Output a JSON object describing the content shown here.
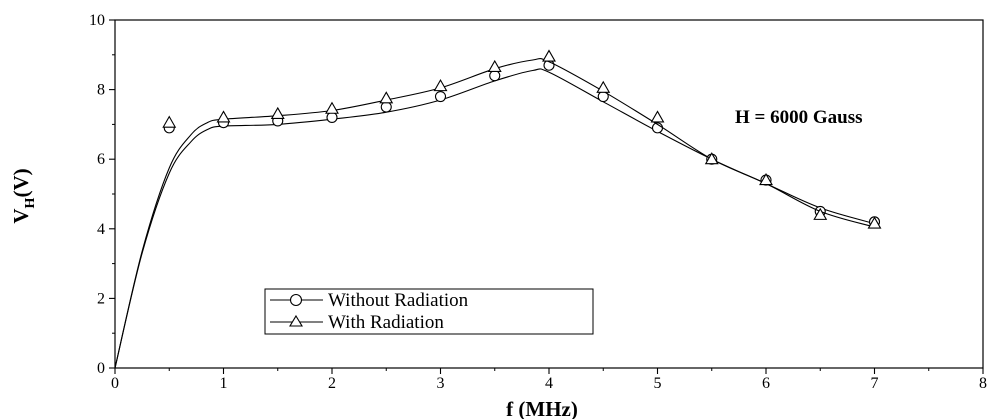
{
  "chart_data": {
    "type": "line",
    "title": "",
    "xlabel": "f (MHz)",
    "ylabel_main": "V",
    "ylabel_sub": "H",
    "ylabel_unit": "(V)",
    "xlim": [
      0,
      8
    ],
    "ylim": [
      0,
      10
    ],
    "xticks": [
      "0",
      "1",
      "2",
      "3",
      "4",
      "5",
      "6",
      "7",
      "8"
    ],
    "yticks": [
      "0",
      "2",
      "4",
      "6",
      "8",
      "10"
    ],
    "annotation": "H = 6000 Gauss",
    "legend_position": "bottom-left",
    "grid": false,
    "series": [
      {
        "name": "Without Radiation",
        "marker": "circle",
        "x": [
          0.5,
          1.0,
          1.5,
          2.0,
          2.5,
          3.0,
          3.5,
          4.0,
          4.5,
          5.0,
          5.5,
          6.0,
          6.5,
          7.0
        ],
        "y": [
          6.9,
          7.05,
          7.1,
          7.2,
          7.5,
          7.8,
          8.4,
          8.7,
          7.8,
          6.9,
          6.0,
          5.4,
          4.5,
          4.2
        ],
        "curve_x": [
          0,
          0.25,
          0.5,
          0.7,
          0.85,
          1.0,
          1.5,
          2.0,
          2.5,
          3.0,
          3.5,
          3.85,
          4.0,
          4.5,
          5.0,
          5.5,
          6.0,
          6.5,
          7.0
        ],
        "curve_y": [
          0,
          3.3,
          5.6,
          6.5,
          6.85,
          6.95,
          7.0,
          7.15,
          7.35,
          7.7,
          8.25,
          8.55,
          8.5,
          7.65,
          6.8,
          6.0,
          5.3,
          4.6,
          4.15
        ]
      },
      {
        "name": "With Radiation",
        "marker": "triangle",
        "x": [
          0.5,
          1.0,
          1.5,
          2.0,
          2.5,
          3.0,
          3.5,
          4.0,
          4.5,
          5.0,
          5.5,
          6.0,
          6.5,
          7.0
        ],
        "y": [
          7.05,
          7.2,
          7.3,
          7.45,
          7.75,
          8.1,
          8.65,
          8.95,
          8.05,
          7.2,
          6.0,
          5.4,
          4.4,
          4.15
        ],
        "curve_x": [
          0,
          0.25,
          0.5,
          0.7,
          0.85,
          1.0,
          1.5,
          2.0,
          2.5,
          3.0,
          3.5,
          3.85,
          4.0,
          4.5,
          5.0,
          5.5,
          6.0,
          6.5,
          7.0
        ],
        "curve_y": [
          0,
          3.35,
          5.75,
          6.7,
          7.05,
          7.15,
          7.25,
          7.4,
          7.7,
          8.05,
          8.6,
          8.85,
          8.8,
          7.95,
          7.0,
          6.0,
          5.3,
          4.5,
          4.05
        ]
      }
    ]
  }
}
